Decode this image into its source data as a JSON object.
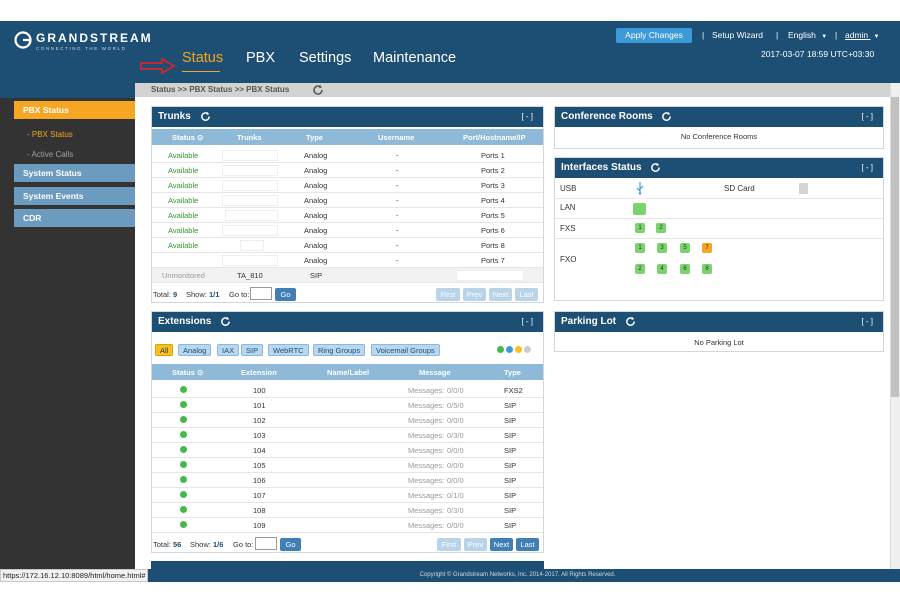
{
  "header": {
    "brand": "GRANDSTREAM",
    "tagline": "CONNECTING THE WORLD",
    "nav": [
      "Status",
      "PBX",
      "Settings",
      "Maintenance"
    ],
    "apply_changes": "Apply Changes",
    "setup_wizard": "Setup Wizard",
    "language": "English",
    "user": "admin",
    "separator": "|",
    "timestamp": "2017-03-07 18:59 UTC+03:30",
    "accent_color": "#f5a623",
    "bar_color": "#1d4e74"
  },
  "sidebar": {
    "pbx_status": "PBX Status",
    "sub_pbx_status": "- PBX Status",
    "sub_active_calls": "- Active Calls",
    "system_status": "System Status",
    "system_events": "System Events",
    "cdr": "CDR"
  },
  "breadcrumb": "Status >> PBX Status >> PBX Status",
  "trunks": {
    "title": "Trunks",
    "collapse": "[ - ]",
    "columns": [
      "Status",
      "Trunks",
      "Type",
      "Username",
      "Port/Hostname/IP"
    ],
    "rows": [
      {
        "status": "Available",
        "trunk": "",
        "type": "Analog",
        "username": "-",
        "port": "Ports 1"
      },
      {
        "status": "Available",
        "trunk": "",
        "type": "Analog",
        "username": "-",
        "port": "Ports 2"
      },
      {
        "status": "Available",
        "trunk": "",
        "type": "Analog",
        "username": "-",
        "port": "Ports 3"
      },
      {
        "status": "Available",
        "trunk": "",
        "type": "Analog",
        "username": "-",
        "port": "Ports 4"
      },
      {
        "status": "Available",
        "trunk": "",
        "type": "Analog",
        "username": "-",
        "port": "Ports 5"
      },
      {
        "status": "Available",
        "trunk": "",
        "type": "Analog",
        "username": "-",
        "port": "Ports 6"
      },
      {
        "status": "Available",
        "trunk": "",
        "type": "Analog",
        "username": "-",
        "port": "Ports 8"
      },
      {
        "status": "",
        "trunk": "",
        "type": "Analog",
        "username": "-",
        "port": "Ports 7"
      },
      {
        "status": "Unmonitored",
        "trunk": "TA_810",
        "type": "SIP",
        "username": "",
        "port": ""
      }
    ],
    "pager": {
      "total_label": "Total:",
      "total": "9",
      "show_label": "Show:",
      "show": "1/1",
      "goto_label": "Go to:",
      "go": "Go",
      "first": "First",
      "prev": "Prev",
      "next": "Next",
      "last": "Last"
    }
  },
  "extensions": {
    "title": "Extensions",
    "collapse": "[ - ]",
    "filters": [
      "All",
      "Analog",
      "IAX",
      "SIP",
      "WebRTC",
      "Ring Groups",
      "Voicemail Groups"
    ],
    "legend_colors": [
      "#44b849",
      "#3c9ad9",
      "#f5c020",
      "#cccccc"
    ],
    "columns": [
      "Status",
      "Extension",
      "Name/Label",
      "Message",
      "Type"
    ],
    "rows": [
      {
        "ext": "100",
        "name": "",
        "msg_label": "Messages:",
        "msg": "0/0/0",
        "type": "FXS2"
      },
      {
        "ext": "101",
        "name": "",
        "msg_label": "Messages:",
        "msg": "0/5/0",
        "type": "SIP"
      },
      {
        "ext": "102",
        "name": "",
        "msg_label": "Messages:",
        "msg": "0/0/0",
        "type": "SIP"
      },
      {
        "ext": "103",
        "name": "",
        "msg_label": "Messages:",
        "msg": "0/3/0",
        "type": "SIP"
      },
      {
        "ext": "104",
        "name": "",
        "msg_label": "Messages:",
        "msg": "0/0/0",
        "type": "SIP"
      },
      {
        "ext": "105",
        "name": "",
        "msg_label": "Messages:",
        "msg": "0/0/0",
        "type": "SIP"
      },
      {
        "ext": "106",
        "name": "",
        "msg_label": "Messages:",
        "msg": "0/0/0",
        "type": "SIP"
      },
      {
        "ext": "107",
        "name": "",
        "msg_label": "Messages:",
        "msg": "0/1/0",
        "type": "SIP"
      },
      {
        "ext": "108",
        "name": "",
        "msg_label": "Messages:",
        "msg": "0/3/0",
        "type": "SIP"
      },
      {
        "ext": "109",
        "name": "",
        "msg_label": "Messages:",
        "msg": "0/0/0",
        "type": "SIP"
      }
    ],
    "pager": {
      "total_label": "Total:",
      "total": "56",
      "show_label": "Show:",
      "show": "1/6",
      "goto_label": "Go to:",
      "go": "Go",
      "first": "First",
      "prev": "Prev",
      "next": "Next",
      "last": "Last"
    }
  },
  "conference": {
    "title": "Conference Rooms",
    "collapse": "[ - ]",
    "empty": "No Conference Rooms"
  },
  "interfaces": {
    "title": "Interfaces Status",
    "collapse": "[ - ]",
    "usb": "USB",
    "sd_card": "SD Card",
    "lan": "LAN",
    "fxs": "FXS",
    "fxo": "FXO",
    "fxs_ports": [
      "1",
      "2"
    ],
    "fxo_ports_top": [
      "1",
      "3",
      "5",
      "7"
    ],
    "fxo_ports_bottom": [
      "2",
      "4",
      "6",
      "8"
    ]
  },
  "parking": {
    "title": "Parking Lot",
    "collapse": "[ - ]",
    "empty": "No Parking Lot"
  },
  "footer": {
    "copyright": "Copyright © Grandstream Networks, Inc. 2014-2017. All Rights Reserved."
  },
  "status_url": "https://172.16.12.10:8089/html/home.html#"
}
